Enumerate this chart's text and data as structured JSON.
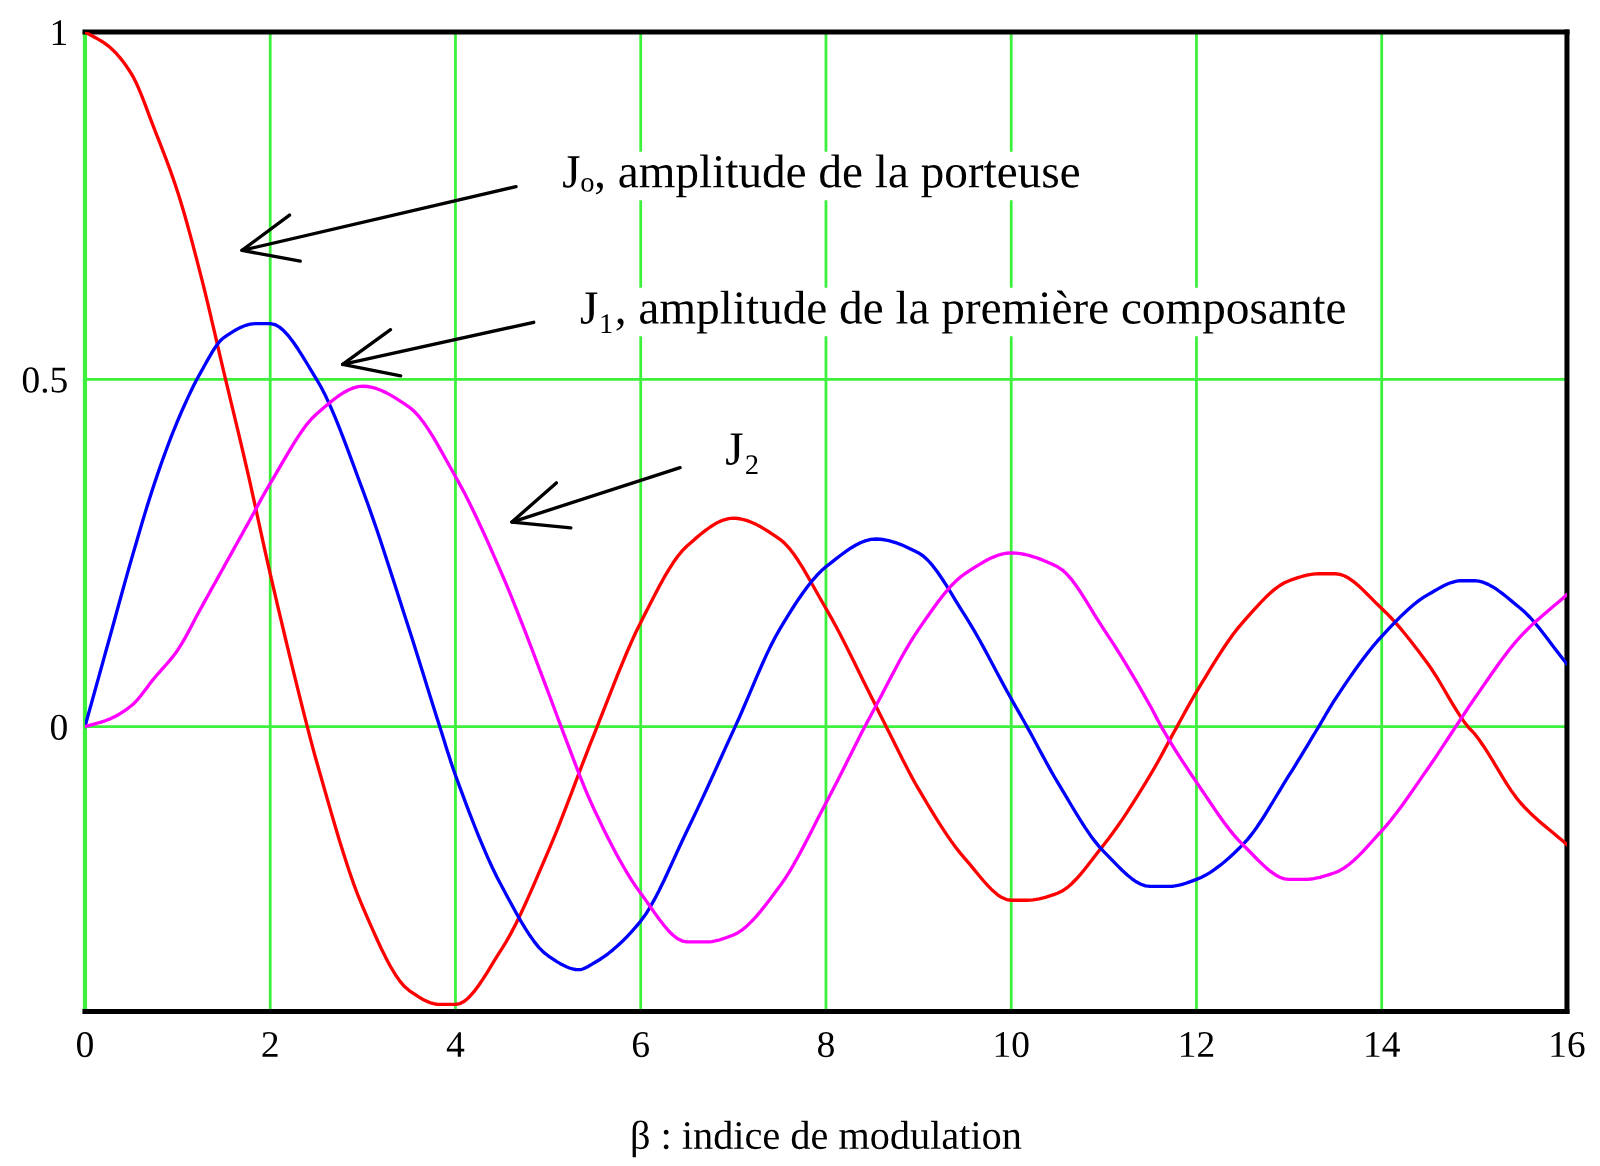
{
  "chart_data": {
    "type": "line",
    "xlabel": "β : indice de modulation",
    "xlim": [
      0,
      16
    ],
    "xticks": [
      0,
      2,
      4,
      6,
      8,
      10,
      12,
      14,
      16
    ],
    "ylim": [
      -0.41,
      1
    ],
    "yticks": [
      0,
      0.5,
      1
    ],
    "grid": true,
    "series": [
      {
        "color": "#ff0000",
        "x": [
          0,
          0.25,
          0.5,
          0.75,
          1,
          1.25,
          1.5,
          1.75,
          2,
          2.4,
          2.5,
          3,
          3.5,
          3.83,
          4,
          4.5,
          5,
          5.5,
          6,
          6.5,
          7,
          7.5,
          8,
          8.5,
          8.65,
          9,
          9.5,
          10,
          10.17,
          10.5,
          11,
          11.5,
          11.79,
          12,
          12.5,
          13,
          13.32,
          13.5,
          14,
          14.5,
          14.93,
          15,
          15.5,
          16
        ],
        "values": [
          1.0,
          0.98,
          0.94,
          0.86,
          0.77,
          0.65,
          0.51,
          0.37,
          0.22,
          0.0,
          -0.05,
          -0.26,
          -0.38,
          -0.4,
          -0.4,
          -0.32,
          -0.18,
          -0.01,
          0.15,
          0.26,
          0.3,
          0.27,
          0.17,
          0.04,
          0.0,
          -0.09,
          -0.19,
          -0.25,
          -0.25,
          -0.24,
          -0.17,
          -0.07,
          0.0,
          0.05,
          0.15,
          0.21,
          0.22,
          0.22,
          0.17,
          0.09,
          0.0,
          -0.01,
          -0.11,
          -0.17
        ]
      },
      {
        "color": "#0000ff",
        "x": [
          0,
          0.25,
          0.5,
          0.75,
          1,
          1.25,
          1.5,
          1.84,
          2,
          2.5,
          3,
          3.5,
          3.83,
          4,
          4.5,
          5,
          5.33,
          5.5,
          6,
          6.5,
          7.02,
          7.5,
          8,
          8.54,
          9,
          9.5,
          10,
          10.17,
          10.5,
          11,
          11.5,
          11.71,
          12,
          12.5,
          13,
          13.32,
          13.5,
          14,
          14.5,
          14.86,
          15,
          15.5,
          16
        ],
        "values": [
          0.0,
          0.12,
          0.24,
          0.35,
          0.44,
          0.51,
          0.56,
          0.58,
          0.58,
          0.5,
          0.34,
          0.14,
          0.0,
          -0.07,
          -0.23,
          -0.33,
          -0.35,
          -0.34,
          -0.28,
          -0.15,
          0.0,
          0.14,
          0.23,
          0.27,
          0.25,
          0.16,
          0.04,
          0.0,
          -0.08,
          -0.18,
          -0.23,
          -0.23,
          -0.22,
          -0.17,
          -0.07,
          0.0,
          0.04,
          0.13,
          0.19,
          0.21,
          0.21,
          0.17,
          0.09
        ]
      },
      {
        "color": "#ff00ff",
        "x": [
          0,
          0.25,
          0.5,
          0.75,
          1,
          1.25,
          1.5,
          1.75,
          2,
          2.5,
          3,
          3.5,
          4,
          4.5,
          5,
          5.14,
          5.5,
          6,
          6.5,
          6.71,
          7,
          7.5,
          8,
          8.42,
          8.5,
          9,
          9.5,
          10,
          10.5,
          11,
          11.5,
          11.62,
          12,
          12.5,
          13,
          13.17,
          13.5,
          14,
          14.5,
          14.8,
          15,
          15.5,
          16
        ],
        "values": [
          0.0,
          0.01,
          0.03,
          0.07,
          0.11,
          0.17,
          0.23,
          0.29,
          0.35,
          0.45,
          0.49,
          0.46,
          0.36,
          0.22,
          0.05,
          0.0,
          -0.12,
          -0.24,
          -0.31,
          -0.31,
          -0.3,
          -0.23,
          -0.11,
          0.0,
          0.02,
          0.14,
          0.22,
          0.25,
          0.23,
          0.14,
          0.03,
          0.0,
          -0.08,
          -0.17,
          -0.22,
          -0.22,
          -0.21,
          -0.15,
          -0.06,
          0.0,
          0.04,
          0.13,
          0.19
        ]
      }
    ],
    "annotations": [
      "Jₒ, amplitude de la porteuse",
      "J₁, amplitude de la première composante",
      "J₂"
    ]
  }
}
